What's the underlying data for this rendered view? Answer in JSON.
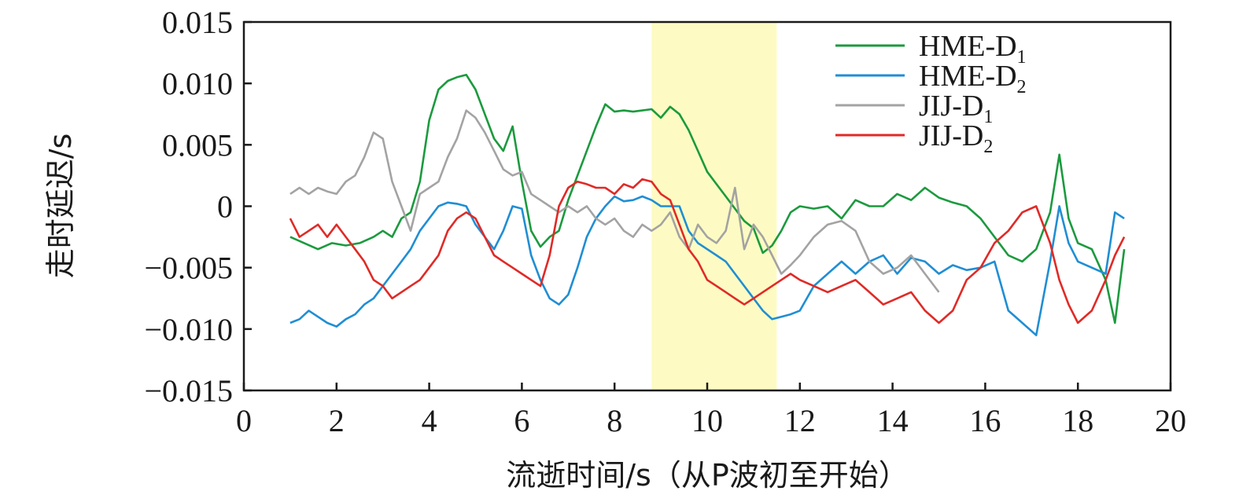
{
  "chart_data": {
    "type": "line",
    "xlabel": "流逝时间/s（从P波初至开始）",
    "ylabel": "走时延迟/s",
    "xlim": [
      0,
      20
    ],
    "ylim": [
      -0.015,
      0.015
    ],
    "x_ticks": [
      "0",
      "2",
      "4",
      "6",
      "8",
      "10",
      "12",
      "14",
      "16",
      "18",
      "20"
    ],
    "y_ticks": [
      "0.015",
      "0.010",
      "0.005",
      "0",
      "−0.005",
      "−0.010",
      "−0.015"
    ],
    "highlight_band": {
      "x_range": [
        8.8,
        11.5
      ],
      "color": "#fdfbc3"
    },
    "grid": false,
    "legend_position": "top-right",
    "series": [
      {
        "name": "HME-D1",
        "label_main": "HME-D",
        "label_sub": "1",
        "color": "#1b9a3e",
        "x": [
          1.0,
          1.3,
          1.6,
          1.9,
          2.2,
          2.5,
          2.8,
          3.0,
          3.2,
          3.4,
          3.6,
          3.8,
          4.0,
          4.2,
          4.4,
          4.6,
          4.8,
          5.0,
          5.2,
          5.4,
          5.6,
          5.8,
          6.0,
          6.2,
          6.4,
          6.6,
          6.8,
          7.0,
          7.2,
          7.4,
          7.6,
          7.8,
          8.0,
          8.2,
          8.4,
          8.6,
          8.8,
          9.0,
          9.2,
          9.4,
          9.6,
          9.8,
          10.0,
          10.2,
          10.4,
          10.6,
          10.8,
          11.0,
          11.2,
          11.4,
          11.6,
          11.8,
          12.0,
          12.3,
          12.6,
          12.9,
          13.2,
          13.5,
          13.8,
          14.1,
          14.4,
          14.7,
          15.0,
          15.3,
          15.6,
          15.9,
          16.2,
          16.5,
          16.8,
          17.1,
          17.4,
          17.6,
          17.8,
          18.0,
          18.3,
          18.6,
          18.8,
          19.0
        ],
        "y": [
          -0.0025,
          -0.003,
          -0.0035,
          -0.003,
          -0.0032,
          -0.003,
          -0.0025,
          -0.002,
          -0.0025,
          -0.001,
          -0.0005,
          0.002,
          0.007,
          0.0095,
          0.0102,
          0.0105,
          0.0107,
          0.0095,
          0.0075,
          0.0055,
          0.0045,
          0.0065,
          0.002,
          -0.002,
          -0.0033,
          -0.0025,
          -0.002,
          0.0005,
          0.0025,
          0.0045,
          0.0065,
          0.0083,
          0.0077,
          0.0078,
          0.0077,
          0.0078,
          0.0079,
          0.0072,
          0.0081,
          0.0075,
          0.0062,
          0.0045,
          0.0028,
          0.0018,
          0.0008,
          -0.0002,
          -0.0012,
          -0.0018,
          -0.0038,
          -0.0032,
          -0.002,
          -0.0005,
          0.0,
          -0.0002,
          0.0,
          -0.001,
          0.0005,
          0.0,
          0.0,
          0.001,
          0.0005,
          0.0015,
          0.0007,
          0.0003,
          0.0,
          -0.001,
          -0.0025,
          -0.004,
          -0.0045,
          -0.0035,
          -0.0005,
          0.0042,
          -0.001,
          -0.003,
          -0.0035,
          -0.006,
          -0.0095,
          -0.0035
        ]
      },
      {
        "name": "HME-D2",
        "label_main": "HME-D",
        "label_sub": "2",
        "color": "#1f8ed4",
        "x": [
          1.0,
          1.2,
          1.4,
          1.6,
          1.8,
          2.0,
          2.2,
          2.4,
          2.6,
          2.8,
          3.0,
          3.2,
          3.4,
          3.6,
          3.8,
          4.0,
          4.2,
          4.4,
          4.6,
          4.8,
          5.0,
          5.2,
          5.4,
          5.6,
          5.8,
          6.0,
          6.2,
          6.4,
          6.6,
          6.8,
          7.0,
          7.2,
          7.4,
          7.6,
          7.8,
          8.0,
          8.2,
          8.4,
          8.6,
          8.8,
          9.0,
          9.2,
          9.4,
          9.6,
          9.8,
          10.0,
          10.2,
          10.4,
          10.6,
          10.8,
          11.0,
          11.2,
          11.4,
          11.6,
          11.8,
          12.0,
          12.3,
          12.6,
          12.9,
          13.2,
          13.5,
          13.8,
          14.1,
          14.4,
          14.7,
          15.0,
          15.3,
          15.6,
          15.9,
          16.2,
          16.5,
          16.8,
          17.1,
          17.4,
          17.6,
          17.8,
          18.0,
          18.3,
          18.6,
          18.8,
          19.0
        ],
        "y": [
          -0.0095,
          -0.0092,
          -0.0085,
          -0.009,
          -0.0095,
          -0.0098,
          -0.0092,
          -0.0088,
          -0.008,
          -0.0075,
          -0.0065,
          -0.0055,
          -0.0045,
          -0.0035,
          -0.002,
          -0.001,
          0.0,
          0.0003,
          0.0002,
          0.0,
          -0.0015,
          -0.0025,
          -0.0035,
          -0.002,
          0.0,
          -0.0002,
          -0.004,
          -0.006,
          -0.0075,
          -0.008,
          -0.0072,
          -0.005,
          -0.0025,
          -0.001,
          0.0,
          0.0008,
          0.0004,
          0.0005,
          0.0008,
          0.0005,
          0.0,
          0.0,
          0.0,
          -0.002,
          -0.003,
          -0.0035,
          -0.004,
          -0.0045,
          -0.0055,
          -0.0065,
          -0.0075,
          -0.0085,
          -0.0092,
          -0.009,
          -0.0088,
          -0.0085,
          -0.0065,
          -0.0055,
          -0.0045,
          -0.0055,
          -0.0045,
          -0.004,
          -0.0055,
          -0.0042,
          -0.0045,
          -0.0055,
          -0.0048,
          -0.0052,
          -0.005,
          -0.0045,
          -0.0085,
          -0.0095,
          -0.0105,
          -0.0045,
          0.0,
          -0.003,
          -0.0045,
          -0.005,
          -0.0055,
          -0.0005,
          -0.001
        ]
      },
      {
        "name": "JIJ-D1",
        "label_main": "JIJ-D",
        "label_sub": "1",
        "color": "#a3a3a3",
        "x": [
          1.0,
          1.2,
          1.4,
          1.6,
          1.8,
          2.0,
          2.2,
          2.4,
          2.6,
          2.8,
          3.0,
          3.2,
          3.4,
          3.6,
          3.8,
          4.0,
          4.2,
          4.4,
          4.6,
          4.8,
          5.0,
          5.2,
          5.4,
          5.6,
          5.8,
          6.0,
          6.2,
          6.4,
          6.6,
          6.8,
          7.0,
          7.2,
          7.4,
          7.6,
          7.8,
          8.0,
          8.2,
          8.4,
          8.6,
          8.8,
          9.0,
          9.2,
          9.4,
          9.6,
          9.8,
          10.0,
          10.2,
          10.4,
          10.6,
          10.8,
          11.0,
          11.2,
          11.4,
          11.6,
          11.8,
          12.0,
          12.3,
          12.6,
          12.9,
          13.2,
          13.5,
          13.8,
          14.1,
          14.4,
          14.7,
          15.0
        ],
        "y": [
          0.001,
          0.0015,
          0.001,
          0.0015,
          0.0012,
          0.001,
          0.002,
          0.0025,
          0.004,
          0.006,
          0.0055,
          0.002,
          0.0,
          -0.002,
          0.001,
          0.0015,
          0.002,
          0.004,
          0.0055,
          0.0078,
          0.0072,
          0.006,
          0.0045,
          0.003,
          0.0025,
          0.0028,
          0.001,
          0.0005,
          0.0,
          -0.0005,
          0.0,
          -0.0005,
          0.0,
          -0.001,
          -0.0015,
          -0.001,
          -0.002,
          -0.0025,
          -0.0015,
          -0.002,
          -0.0015,
          -0.0005,
          -0.0025,
          -0.0035,
          -0.0015,
          -0.0025,
          -0.003,
          -0.002,
          0.0015,
          -0.0035,
          -0.0015,
          -0.0025,
          -0.004,
          -0.0055,
          -0.0048,
          -0.004,
          -0.0025,
          -0.0015,
          -0.0012,
          -0.002,
          -0.0045,
          -0.0055,
          -0.005,
          -0.004,
          -0.0055,
          -0.007
        ]
      },
      {
        "name": "JIJ-D2",
        "label_main": "JIJ-D",
        "label_sub": "2",
        "color": "#e02a26",
        "x": [
          1.0,
          1.2,
          1.4,
          1.6,
          1.8,
          2.0,
          2.2,
          2.4,
          2.6,
          2.8,
          3.0,
          3.2,
          3.4,
          3.6,
          3.8,
          4.0,
          4.2,
          4.4,
          4.6,
          4.8,
          5.0,
          5.2,
          5.4,
          5.6,
          5.8,
          6.0,
          6.2,
          6.4,
          6.6,
          6.8,
          7.0,
          7.2,
          7.4,
          7.6,
          7.8,
          8.0,
          8.2,
          8.4,
          8.6,
          8.8,
          9.0,
          9.2,
          9.4,
          9.6,
          9.8,
          10.0,
          10.2,
          10.4,
          10.6,
          10.8,
          11.0,
          11.2,
          11.4,
          11.6,
          11.8,
          12.0,
          12.3,
          12.6,
          12.9,
          13.2,
          13.5,
          13.8,
          14.1,
          14.4,
          14.7,
          15.0,
          15.3,
          15.6,
          15.9,
          16.2,
          16.5,
          16.8,
          17.1,
          17.4,
          17.6,
          17.8,
          18.0,
          18.3,
          18.6,
          18.8,
          19.0
        ],
        "y": [
          -0.001,
          -0.0025,
          -0.002,
          -0.0015,
          -0.0025,
          -0.0015,
          -0.0025,
          -0.0035,
          -0.0045,
          -0.006,
          -0.0065,
          -0.0075,
          -0.007,
          -0.0065,
          -0.006,
          -0.005,
          -0.004,
          -0.002,
          -0.001,
          -0.0005,
          -0.001,
          -0.0025,
          -0.004,
          -0.0045,
          -0.005,
          -0.0055,
          -0.006,
          -0.0065,
          -0.004,
          0.0,
          0.0015,
          0.002,
          0.0018,
          0.0015,
          0.0015,
          0.001,
          0.0018,
          0.0015,
          0.0022,
          0.002,
          0.001,
          0.0005,
          -0.0015,
          -0.0035,
          -0.0045,
          -0.006,
          -0.0065,
          -0.007,
          -0.0075,
          -0.008,
          -0.0075,
          -0.007,
          -0.0065,
          -0.006,
          -0.0055,
          -0.006,
          -0.0065,
          -0.007,
          -0.0065,
          -0.006,
          -0.007,
          -0.008,
          -0.0075,
          -0.007,
          -0.0085,
          -0.0095,
          -0.0085,
          -0.006,
          -0.005,
          -0.003,
          -0.002,
          -0.0005,
          0.0,
          -0.003,
          -0.006,
          -0.008,
          -0.0095,
          -0.0085,
          -0.006,
          -0.004,
          -0.0025
        ]
      }
    ]
  }
}
